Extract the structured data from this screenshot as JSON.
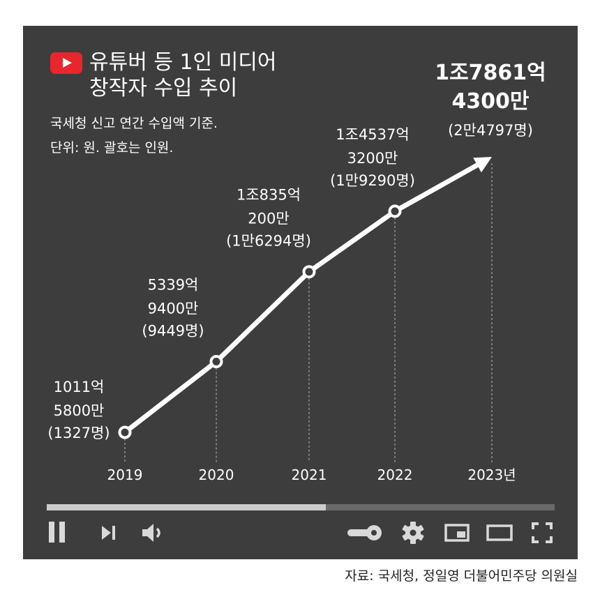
{
  "header": {
    "title_line1": "유튜버 등 1인 미디어",
    "title_line2": "창작자 수입 추이",
    "note_line1": "국세청 신고 연간 수입액 기준.",
    "note_line2": "단위: 원. 괄호는 인원."
  },
  "source": "자료: 국세청, 정일영 더불어민주당 의원실",
  "colors": {
    "panel": "#3d3d3d",
    "logo_red": "#e8262d",
    "line": "#ffffff",
    "progress_played": "#cccccc",
    "progress_remaining": "#6a6a6a",
    "controls": "#d9d9d9"
  },
  "player": {
    "progress": 0.55,
    "icons": [
      "pause-icon",
      "next-icon",
      "volume-icon",
      "autoplay-toggle-icon",
      "settings-gear-icon",
      "miniplayer-icon",
      "theater-mode-icon",
      "fullscreen-icon"
    ]
  },
  "chart_data": {
    "type": "line",
    "title": "유튜버 등 1인 미디어 창작자 수입 추이",
    "xlabel": "",
    "ylabel": "",
    "categories": [
      "2019",
      "2020",
      "2021",
      "2022",
      "2023년"
    ],
    "series": [
      {
        "name": "",
        "values": [
          101158000000,
          533994000000,
          1083502000000,
          1453732000000,
          1786143000000
        ]
      }
    ],
    "labels": [
      [
        "1011억",
        "5800만",
        "(1327명)"
      ],
      [
        "5339억",
        "9400만",
        "(9449명)"
      ],
      [
        "1조835억",
        "200만",
        "(1만6294명)"
      ],
      [
        "1조4537억",
        "3200만",
        "(1만9290명)"
      ],
      [
        "1조7861억",
        "4300만",
        "(2만4797명)"
      ]
    ],
    "grid": false,
    "legend": "none"
  }
}
